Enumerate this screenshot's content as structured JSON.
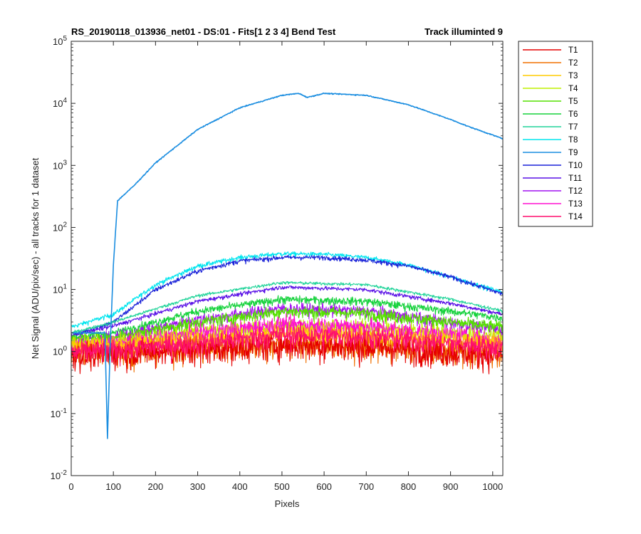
{
  "chart_data": {
    "type": "line",
    "title_left": "RS_20190118_013936_net01 - DS:01 - Fits[1  2  3  4]   Bend Test",
    "title_right": "Track illuminted 9",
    "xlabel": "Pixels",
    "ylabel": "Net Signal (ADU/pix/sec) - all tracks for 1 dataset",
    "xlim": [
      0,
      1024
    ],
    "ylim": [
      0.01,
      100000
    ],
    "y_scale": "log",
    "x_ticks": [
      0,
      100,
      200,
      300,
      400,
      500,
      600,
      700,
      800,
      900,
      1000
    ],
    "x_tick_labels": [
      "0",
      "100",
      "200",
      "300",
      "400",
      "500",
      "600",
      "700",
      "800",
      "900",
      "1000"
    ],
    "y_ticks": [
      0.01,
      0.1,
      1,
      10,
      100,
      1000,
      10000,
      100000
    ],
    "y_tick_mantissa": [
      "10",
      "10",
      "10",
      "10",
      "10",
      "10",
      "10",
      "10"
    ],
    "y_tick_exponents": [
      "-2",
      "-1",
      "0",
      "1",
      "2",
      "3",
      "4",
      "5"
    ],
    "grid": false,
    "legend_placement": "outside-right",
    "series": [
      {
        "name": "T1",
        "color": "#e60000",
        "values": [
          [
            0,
            0.9
          ],
          [
            100,
            0.95
          ],
          [
            300,
            1.1
          ],
          [
            500,
            1.3
          ],
          [
            700,
            1.2
          ],
          [
            900,
            1.0
          ],
          [
            1024,
            0.9
          ]
        ]
      },
      {
        "name": "T2",
        "color": "#f07000",
        "values": [
          [
            0,
            0.95
          ],
          [
            100,
            1.0
          ],
          [
            300,
            1.15
          ],
          [
            500,
            1.35
          ],
          [
            700,
            1.25
          ],
          [
            900,
            1.05
          ],
          [
            1024,
            0.95
          ]
        ]
      },
      {
        "name": "T3",
        "color": "#ffcc00",
        "values": [
          [
            0,
            1.3
          ],
          [
            100,
            1.3
          ],
          [
            300,
            1.6
          ],
          [
            500,
            1.9
          ],
          [
            700,
            1.8
          ],
          [
            900,
            1.5
          ],
          [
            1024,
            1.4
          ]
        ]
      },
      {
        "name": "T4",
        "color": "#bff000",
        "values": [
          [
            0,
            1.4
          ],
          [
            100,
            1.4
          ],
          [
            300,
            2.1
          ],
          [
            500,
            2.6
          ],
          [
            700,
            2.5
          ],
          [
            900,
            2.0
          ],
          [
            1024,
            1.7
          ]
        ]
      },
      {
        "name": "T5",
        "color": "#55e000",
        "values": [
          [
            0,
            1.6
          ],
          [
            100,
            1.7
          ],
          [
            300,
            3.0
          ],
          [
            500,
            4.5
          ],
          [
            700,
            4.2
          ],
          [
            900,
            3.0
          ],
          [
            1024,
            2.5
          ]
        ]
      },
      {
        "name": "T6",
        "color": "#16d23c",
        "values": [
          [
            0,
            1.7
          ],
          [
            100,
            2.0
          ],
          [
            300,
            4.5
          ],
          [
            500,
            7.0
          ],
          [
            700,
            6.5
          ],
          [
            900,
            4.5
          ],
          [
            1024,
            3.5
          ]
        ]
      },
      {
        "name": "T7",
        "color": "#22d49a",
        "values": [
          [
            0,
            2.0
          ],
          [
            100,
            3.0
          ],
          [
            300,
            8.0
          ],
          [
            500,
            13.0
          ],
          [
            700,
            12.0
          ],
          [
            900,
            7.0
          ],
          [
            1024,
            4.5
          ]
        ]
      },
      {
        "name": "T8",
        "color": "#00e5ee",
        "values": [
          [
            0,
            2.5
          ],
          [
            100,
            4.0
          ],
          [
            200,
            12.0
          ],
          [
            300,
            24.0
          ],
          [
            400,
            33.0
          ],
          [
            500,
            38.0
          ],
          [
            600,
            37.0
          ],
          [
            700,
            33.0
          ],
          [
            800,
            25.0
          ],
          [
            900,
            16.0
          ],
          [
            1024,
            9.0
          ]
        ]
      },
      {
        "name": "T9",
        "color": "#1a8de0",
        "values": [
          [
            0,
            2.0
          ],
          [
            80,
            2.0
          ],
          [
            86,
            0.04
          ],
          [
            92,
            1.0
          ],
          [
            100,
            25.0
          ],
          [
            110,
            270.0
          ],
          [
            150,
            480.0
          ],
          [
            200,
            1100.0
          ],
          [
            300,
            3800.0
          ],
          [
            400,
            8500.0
          ],
          [
            500,
            13500.0
          ],
          [
            540,
            14500.0
          ],
          [
            560,
            12500.0
          ],
          [
            600,
            14500.0
          ],
          [
            700,
            13500.0
          ],
          [
            800,
            9500.0
          ],
          [
            900,
            5500.0
          ],
          [
            940,
            4300.0
          ],
          [
            1024,
            2700.0
          ]
        ]
      },
      {
        "name": "T10",
        "color": "#1a22d8",
        "values": [
          [
            0,
            1.8
          ],
          [
            100,
            3.0
          ],
          [
            200,
            10.0
          ],
          [
            300,
            20.0
          ],
          [
            400,
            29.0
          ],
          [
            500,
            33.0
          ],
          [
            600,
            33.0
          ],
          [
            700,
            30.0
          ],
          [
            800,
            24.0
          ],
          [
            900,
            16.0
          ],
          [
            1024,
            8.5
          ]
        ]
      },
      {
        "name": "T11",
        "color": "#5a11e6",
        "values": [
          [
            0,
            1.8
          ],
          [
            100,
            2.6
          ],
          [
            300,
            6.5
          ],
          [
            500,
            11.0
          ],
          [
            700,
            10.0
          ],
          [
            900,
            6.0
          ],
          [
            1024,
            4.0
          ]
        ]
      },
      {
        "name": "T12",
        "color": "#a210f0",
        "values": [
          [
            0,
            1.5
          ],
          [
            100,
            1.7
          ],
          [
            300,
            3.3
          ],
          [
            500,
            5.0
          ],
          [
            700,
            4.6
          ],
          [
            900,
            3.0
          ],
          [
            1024,
            2.2
          ]
        ]
      },
      {
        "name": "T13",
        "color": "#ff10d0",
        "values": [
          [
            0,
            1.2
          ],
          [
            100,
            1.3
          ],
          [
            300,
            2.0
          ],
          [
            500,
            2.8
          ],
          [
            700,
            2.6
          ],
          [
            900,
            1.9
          ],
          [
            1024,
            1.5
          ]
        ]
      },
      {
        "name": "T14",
        "color": "#ff0e6e",
        "values": [
          [
            0,
            1.0
          ],
          [
            100,
            1.1
          ],
          [
            300,
            1.4
          ],
          [
            500,
            1.9
          ],
          [
            700,
            1.8
          ],
          [
            900,
            1.4
          ],
          [
            1024,
            1.2
          ]
        ]
      }
    ]
  }
}
